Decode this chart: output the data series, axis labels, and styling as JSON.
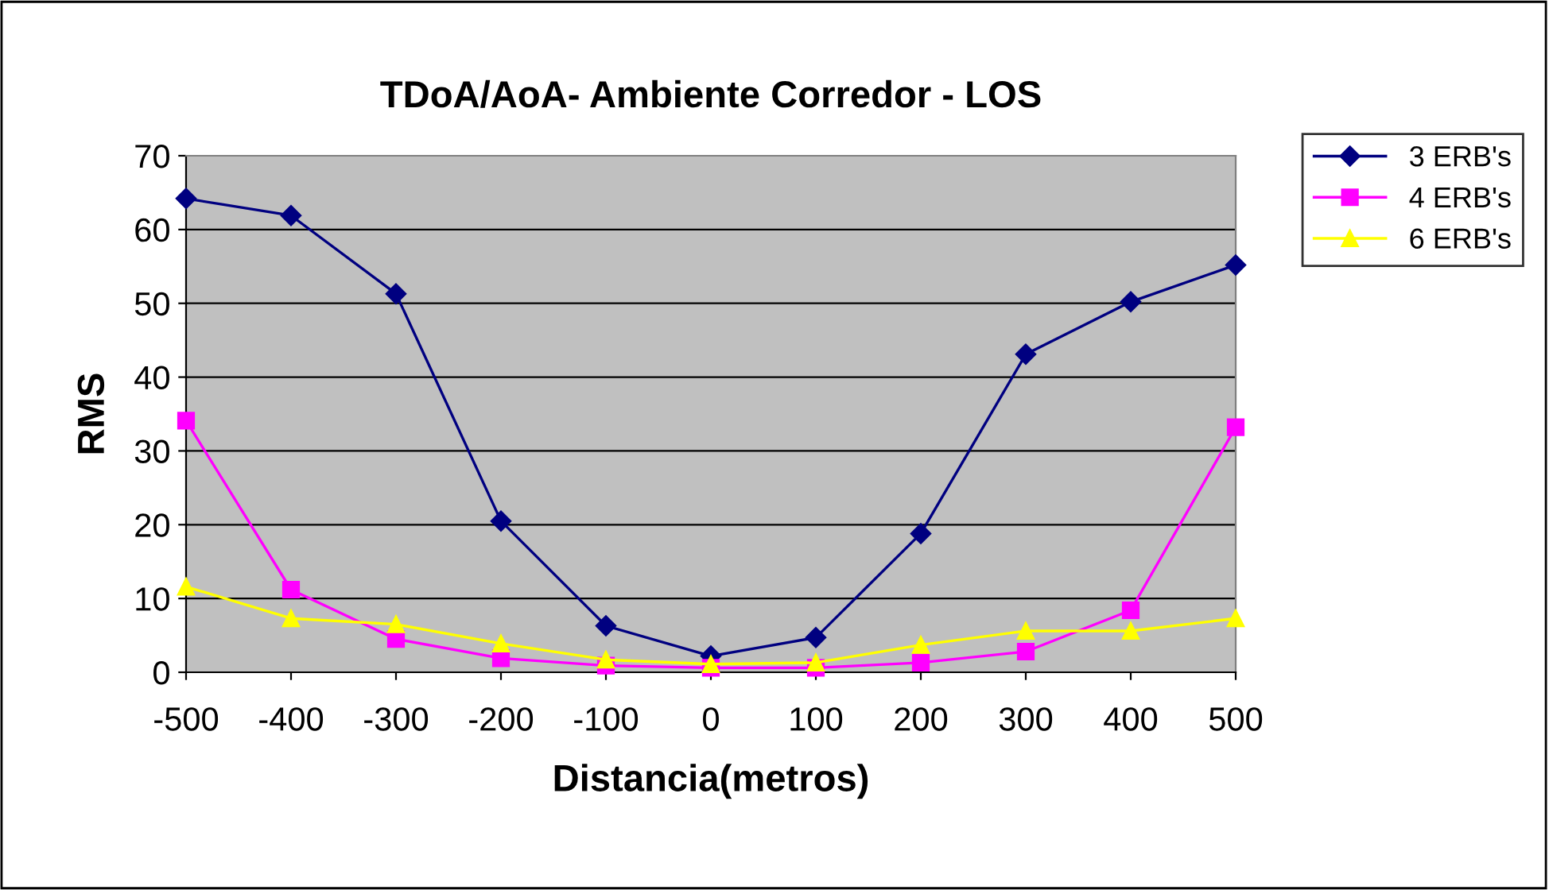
{
  "chart_data": {
    "type": "line",
    "title": "TDoA/AoA- Ambiente Corredor - LOS",
    "xlabel": "Distancia(metros)",
    "ylabel": "RMS",
    "x": [
      -500,
      -400,
      -300,
      -200,
      -100,
      0,
      100,
      200,
      300,
      400,
      500
    ],
    "series": [
      {
        "name": "3 ERB's",
        "color": "#000080",
        "marker": "diamond",
        "values": [
          64.2,
          61.9,
          51.3,
          20.5,
          6.3,
          2.2,
          4.7,
          18.8,
          43.1,
          50.2,
          55.2
        ]
      },
      {
        "name": "4 ERB's",
        "color": "#ff00ff",
        "marker": "square",
        "values": [
          34.1,
          11.2,
          4.5,
          1.9,
          0.9,
          0.6,
          0.6,
          1.3,
          2.8,
          8.4,
          33.2
        ]
      },
      {
        "name": "6 ERB's",
        "color": "#ffff00",
        "marker": "triangle",
        "values": [
          11.6,
          7.3,
          6.5,
          3.9,
          1.7,
          1.1,
          1.3,
          3.7,
          5.6,
          5.6,
          7.3
        ]
      }
    ],
    "xlim": [
      -500,
      500
    ],
    "xticks": [
      -500,
      -400,
      -300,
      -200,
      -100,
      0,
      100,
      200,
      300,
      400,
      500
    ],
    "ylim": [
      0,
      70
    ],
    "yticks": [
      0,
      10,
      20,
      30,
      40,
      50,
      60,
      70
    ],
    "grid": "y",
    "legend": "top right",
    "line_style": "solid"
  }
}
